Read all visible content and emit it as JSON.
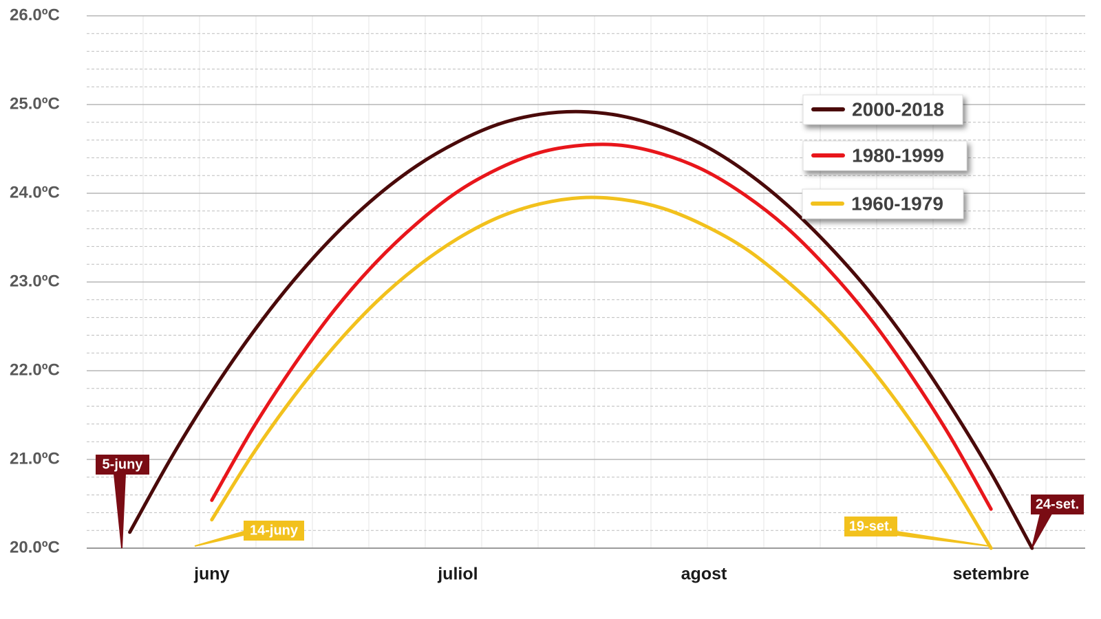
{
  "chart_data": {
    "type": "line",
    "categories": [
      null,
      null,
      null,
      "juny",
      null,
      null,
      null,
      null,
      null,
      "juliol",
      null,
      null,
      null,
      null,
      null,
      "agost",
      null,
      null,
      null,
      null,
      null,
      null,
      "setembre",
      null,
      null
    ],
    "series": [
      {
        "name": "2000-2018",
        "color": "#4a0a0a",
        "values": [
          null,
          20.18,
          21.01,
          21.76,
          22.43,
          23.02,
          23.53,
          23.96,
          24.31,
          24.58,
          24.78,
          24.89,
          24.92,
          24.87,
          24.74,
          24.54,
          24.25,
          23.88,
          23.43,
          22.91,
          22.3,
          21.61,
          20.85,
          20.0,
          null
        ]
      },
      {
        "name": "1980-1999",
        "color": "#e8161b",
        "values": [
          null,
          null,
          null,
          20.54,
          21.35,
          22.06,
          22.69,
          23.22,
          23.66,
          24.02,
          24.28,
          24.46,
          24.54,
          24.54,
          24.44,
          24.26,
          23.98,
          23.62,
          23.16,
          22.62,
          21.98,
          21.26,
          20.44,
          null,
          null
        ]
      },
      {
        "name": "1960-1979",
        "color": "#f2c11d",
        "values": [
          null,
          null,
          null,
          20.32,
          21.06,
          21.71,
          22.28,
          22.77,
          23.17,
          23.49,
          23.73,
          23.88,
          23.95,
          23.93,
          23.83,
          23.64,
          23.38,
          23.02,
          22.59,
          22.07,
          21.46,
          20.77,
          20.0,
          null,
          null
        ]
      }
    ],
    "ylim": [
      20,
      26
    ],
    "yticks": [
      {
        "value": 20,
        "label": "20.0ºC"
      },
      {
        "value": 21,
        "label": "21.0ºC"
      },
      {
        "value": 22,
        "label": "22.0ºC"
      },
      {
        "value": 23,
        "label": "23.0ºC"
      },
      {
        "value": 24,
        "label": "24.0ºC"
      },
      {
        "value": 25,
        "label": "25.0ºC"
      },
      {
        "value": 26,
        "label": "26.0ºC"
      }
    ],
    "grid": true,
    "legend": "upper right",
    "annotations": [
      {
        "text": "5-juny",
        "color": "#7a0c14"
      },
      {
        "text": "14-juny",
        "color": "#f2c11d"
      },
      {
        "text": "19-set.",
        "color": "#f2c11d"
      },
      {
        "text": "24-set.",
        "color": "#7a0c14"
      }
    ]
  }
}
